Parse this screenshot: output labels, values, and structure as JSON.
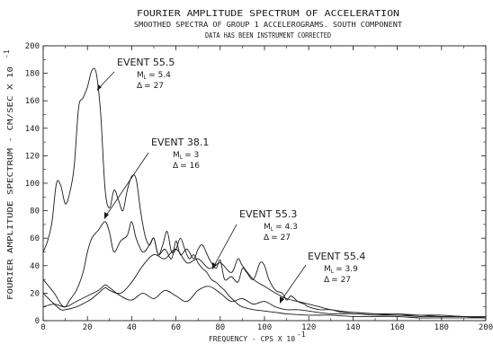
{
  "chart_data": {
    "type": "line",
    "title": "FOURIER AMPLITUDE SPECTRUM OF ACCELERATION",
    "subtitle_1": "SMOOTHED SPECTRA OF GROUP 1 ACCELEROGRAMS. SOUTH COMPONENT",
    "subtitle_2": "DATA HAS BEEN INSTRUMENT CORRECTED",
    "xlabel": "FREQUENCY - CPS X 10",
    "xlabel_exp": "-1",
    "ylabel": "FOURIER AMPLITUDE SPECTRUM - CM/SEC X 10",
    "ylabel_exp": "-1",
    "xlim": [
      0,
      200
    ],
    "ylim": [
      0,
      200
    ],
    "x_ticks": [
      0,
      20,
      40,
      60,
      80,
      100,
      120,
      140,
      160,
      180,
      200
    ],
    "y_ticks": [
      0,
      20,
      40,
      60,
      80,
      100,
      120,
      140,
      160,
      180,
      200
    ],
    "x_tick_labels": [
      "0",
      "20",
      "40",
      "60",
      "80",
      "100",
      "120",
      "140",
      "160",
      "180",
      "200"
    ],
    "y_tick_labels": [
      "0",
      "20",
      "40",
      "60",
      "80",
      "100",
      "120",
      "140",
      "160",
      "180",
      "200"
    ],
    "grid": false,
    "series": [
      {
        "name": "EVENT 55.5",
        "ml_label": "M",
        "ml_sub": "L",
        "ml_value": "= 5.4",
        "delta_symbol": "Δ",
        "delta_value": "= 27",
        "x": [
          0,
          2,
          4,
          6,
          8,
          10,
          12,
          14,
          16,
          18,
          20,
          22,
          24,
          26,
          28,
          30,
          32,
          34,
          36,
          38,
          40,
          42,
          44,
          46,
          48,
          50,
          52,
          54,
          56,
          58,
          60,
          62,
          64,
          66,
          68,
          70,
          72,
          74,
          76,
          78,
          80,
          82,
          84,
          86,
          88,
          90,
          95,
          100,
          105,
          110,
          120,
          130,
          140,
          150,
          160,
          170,
          180,
          190,
          200
        ],
        "y": [
          50,
          58,
          72,
          100,
          98,
          85,
          93,
          112,
          155,
          162,
          170,
          182,
          180,
          150,
          95,
          82,
          95,
          88,
          80,
          95,
          105,
          103,
          80,
          62,
          55,
          60,
          48,
          55,
          65,
          50,
          52,
          60,
          52,
          45,
          48,
          42,
          38,
          35,
          30,
          28,
          25,
          22,
          18,
          15,
          12,
          10,
          8,
          7,
          6,
          5,
          4,
          4,
          3,
          3,
          3,
          2,
          2,
          2,
          2
        ]
      },
      {
        "name": "EVENT 38.1",
        "ml_label": "M",
        "ml_sub": "L",
        "ml_value": "= 3",
        "delta_symbol": "Δ",
        "delta_value": "= 16",
        "x": [
          0,
          5,
          8,
          10,
          12,
          15,
          18,
          20,
          22,
          25,
          28,
          30,
          32,
          35,
          38,
          40,
          42,
          45,
          48,
          50,
          52,
          55,
          58,
          60,
          62,
          65,
          68,
          70,
          72,
          75,
          78,
          80,
          82,
          85,
          88,
          90,
          92,
          95,
          98,
          100,
          102,
          105,
          108,
          110,
          112,
          115,
          118,
          120,
          125,
          130,
          135,
          140,
          150,
          160,
          170,
          180,
          190,
          200
        ],
        "y": [
          30,
          20,
          12,
          10,
          15,
          22,
          35,
          50,
          60,
          66,
          72,
          64,
          50,
          58,
          62,
          72,
          60,
          50,
          55,
          60,
          48,
          52,
          45,
          58,
          48,
          52,
          45,
          52,
          55,
          45,
          38,
          44,
          30,
          32,
          28,
          38,
          35,
          30,
          42,
          40,
          30,
          22,
          20,
          15,
          18,
          14,
          12,
          10,
          8,
          8,
          6,
          6,
          5,
          4,
          4,
          3,
          3,
          2
        ]
      },
      {
        "name": "EVENT 55.3",
        "ml_label": "M",
        "ml_sub": "L",
        "ml_value": "= 4.3",
        "delta_symbol": "Δ",
        "delta_value": "= 27",
        "x": [
          0,
          5,
          8,
          10,
          15,
          20,
          22,
          25,
          28,
          30,
          35,
          40,
          45,
          50,
          55,
          60,
          65,
          70,
          75,
          80,
          85,
          88,
          90,
          95,
          100,
          105,
          110,
          115,
          120,
          125,
          130,
          140,
          150,
          160,
          170,
          180,
          190,
          200
        ],
        "y": [
          20,
          12,
          8,
          8,
          10,
          14,
          16,
          20,
          24,
          22,
          20,
          28,
          40,
          48,
          45,
          52,
          42,
          45,
          38,
          42,
          35,
          45,
          40,
          30,
          25,
          20,
          16,
          14,
          12,
          10,
          8,
          6,
          5,
          5,
          4,
          4,
          3,
          3
        ]
      },
      {
        "name": "EVENT 55.4",
        "ml_label": "M",
        "ml_sub": "L",
        "ml_value": "= 3.9",
        "delta_symbol": "Δ",
        "delta_value": "= 27",
        "x": [
          0,
          5,
          10,
          15,
          20,
          25,
          28,
          30,
          35,
          40,
          45,
          50,
          55,
          60,
          65,
          70,
          75,
          80,
          85,
          90,
          95,
          100,
          105,
          110,
          115,
          120,
          130,
          140,
          150,
          160,
          170,
          180,
          190,
          200
        ],
        "y": [
          10,
          12,
          10,
          14,
          18,
          22,
          26,
          24,
          18,
          15,
          20,
          16,
          22,
          18,
          14,
          22,
          25,
          20,
          14,
          16,
          12,
          14,
          10,
          8,
          8,
          7,
          5,
          5,
          4,
          4,
          3,
          3,
          3,
          2
        ]
      }
    ]
  }
}
